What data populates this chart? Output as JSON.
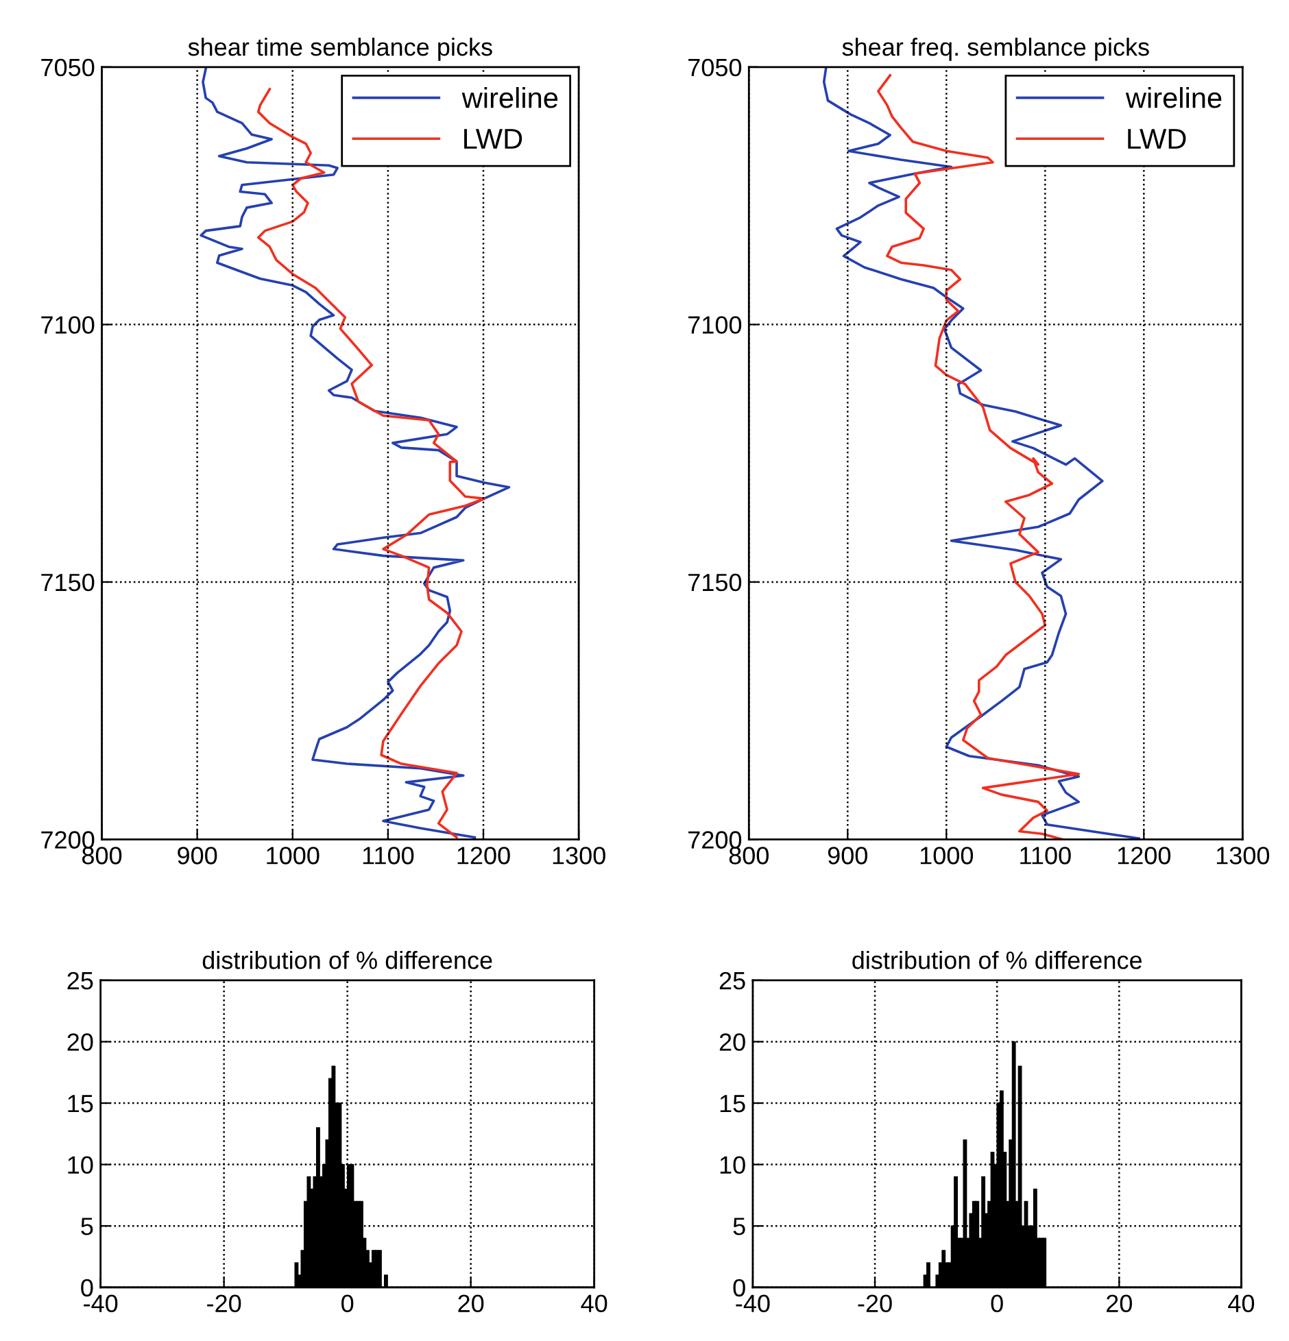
{
  "chart_data": [
    {
      "type": "line",
      "title": "shear time semblance picks",
      "xlim": [
        800,
        1300
      ],
      "xticks": [
        800,
        900,
        1000,
        1100,
        1200,
        1300
      ],
      "ylim": [
        7200,
        7050
      ],
      "yticks": [
        7050,
        7100,
        7150,
        7200
      ],
      "grid": true,
      "legend": "top right",
      "series": [
        {
          "name": "wireline",
          "color": "#2540b0",
          "x": [
            909,
            906,
            909,
            916,
            921,
            947,
            957,
            978,
            952,
            923,
            952,
            1038,
            1047,
            1043,
            947,
            945,
            971,
            978,
            952,
            947,
            945,
            909,
            904,
            933,
            947,
            923,
            921,
            947,
            966,
            1000,
            1014,
            1028,
            1043,
            1028,
            1021,
            1019,
            1033,
            1047,
            1062,
            1057,
            1038,
            1043,
            1062,
            1086,
            1134,
            1172,
            1162,
            1105,
            1114,
            1153,
            1172,
            1172,
            1172,
            1201,
            1227,
            1201,
            1181,
            1172,
            1134,
            1095,
            1047,
            1043,
            1095,
            1179,
            1148,
            1138,
            1143,
            1162,
            1165,
            1162,
            1153,
            1143,
            1134,
            1110,
            1100,
            1105,
            1095,
            1071,
            1057,
            1028,
            1024,
            1021,
            1057,
            1134,
            1179,
            1119,
            1138,
            1134,
            1148,
            1143,
            1095,
            1134,
            1191
          ],
          "values": [
            7050.3,
            7052.9,
            7056.0,
            7056.9,
            7058.7,
            7060.9,
            7063.1,
            7064.0,
            7065.8,
            7067.3,
            7068.5,
            7069.1,
            7069.6,
            7070.9,
            7072.9,
            7074.2,
            7074.7,
            7076.4,
            7077.3,
            7079.1,
            7080.9,
            7081.8,
            7082.7,
            7084.9,
            7085.3,
            7086.6,
            7088.0,
            7089.8,
            7091.1,
            7092.4,
            7093.7,
            7096.0,
            7098.2,
            7099.1,
            7100.4,
            7102.2,
            7104.4,
            7106.6,
            7108.8,
            7111.0,
            7112.8,
            7113.7,
            7114.2,
            7116.8,
            7118.1,
            7119.9,
            7121.3,
            7123.0,
            7123.9,
            7124.4,
            7126.6,
            7127.6,
            7129.4,
            7130.7,
            7131.6,
            7133.8,
            7135.6,
            7137.4,
            7140.5,
            7141.4,
            7142.7,
            7143.6,
            7144.9,
            7145.8,
            7147.2,
            7150.3,
            7151.6,
            7152.9,
            7155.6,
            7157.8,
            7159.6,
            7162.3,
            7164.0,
            7167.6,
            7169.4,
            7171.1,
            7172.9,
            7176.5,
            7178.2,
            7180.5,
            7182.7,
            7184.5,
            7185.3,
            7186.2,
            7187.6,
            7188.9,
            7189.8,
            7191.6,
            7192.5,
            7194.2,
            7196.4,
            7197.8,
            7199.6
          ]
        },
        {
          "name": "LWD",
          "color": "#f03020",
          "x": [
            976,
            966,
            964,
            976,
            1000,
            1014,
            1019,
            1014,
            1033,
            1009,
            1000,
            1004,
            1016,
            1012,
            1000,
            971,
            964,
            976,
            983,
            1000,
            1024,
            1043,
            1055,
            1050,
            1067,
            1083,
            1062,
            1069,
            1095,
            1143,
            1153,
            1148,
            1172,
            1165,
            1165,
            1181,
            1201,
            1181,
            1143,
            1119,
            1095,
            1114,
            1143,
            1141,
            1143,
            1162,
            1177,
            1172,
            1153,
            1134,
            1114,
            1095,
            1093,
            1114,
            1172,
            1157,
            1162,
            1153,
            1172
          ],
          "values": [
            7054.3,
            7057.4,
            7058.7,
            7060.9,
            7063.6,
            7064.9,
            7066.7,
            7068.5,
            7070.5,
            7071.6,
            7072.9,
            7074.2,
            7076.4,
            7078.2,
            7080.0,
            7081.8,
            7083.1,
            7084.9,
            7087.5,
            7090.2,
            7092.9,
            7096.4,
            7098.6,
            7100.8,
            7104.4,
            7107.9,
            7111.5,
            7115.0,
            7117.7,
            7118.6,
            7121.3,
            7123.0,
            7126.6,
            7126.7,
            7130.3,
            7133.4,
            7133.8,
            7135.2,
            7136.9,
            7140.9,
            7143.6,
            7144.9,
            7147.2,
            7150.7,
            7153.4,
            7156.0,
            7159.6,
            7162.3,
            7165.8,
            7170.2,
            7175.6,
            7180.9,
            7183.6,
            7185.3,
            7187.1,
            7190.7,
            7194.2,
            7196.9,
            7199.6
          ]
        }
      ]
    },
    {
      "type": "line",
      "title": "shear freq. semblance picks",
      "xlim": [
        800,
        1300
      ],
      "xticks": [
        800,
        900,
        1000,
        1100,
        1200,
        1300
      ],
      "ylim": [
        7200,
        7050
      ],
      "yticks": [
        7050,
        7100,
        7150,
        7200
      ],
      "grid": true,
      "legend": "top right",
      "series": [
        {
          "name": "wireline",
          "color": "#2540b0",
          "x": [
            878,
            876,
            880,
            903,
            922,
            943,
            931,
            901,
            954,
            1005,
            968,
            922,
            931,
            952,
            931,
            913,
            889,
            894,
            913,
            896,
            917,
            954,
            987,
            1000,
            1017,
            1005,
            998,
            1005,
            1035,
            1012,
            1014,
            1037,
            1070,
            1116,
            1067,
            1088,
            1121,
            1130,
            1158,
            1134,
            1125,
            1093,
            1005,
            1070,
            1116,
            1097,
            1102,
            1116,
            1121,
            1114,
            1107,
            1102,
            1079,
            1074,
            1056,
            1037,
            1005,
            1000,
            1023,
            1093,
            1134,
            1114,
            1121,
            1134,
            1097,
            1102,
            1195
          ],
          "values": [
            7050.3,
            7052.9,
            7056.5,
            7059.2,
            7060.9,
            7063.2,
            7064.9,
            7066.3,
            7068.0,
            7069.4,
            7070.7,
            7072.5,
            7073.4,
            7075.2,
            7076.9,
            7079.2,
            7081.4,
            7082.7,
            7084.0,
            7086.7,
            7088.9,
            7091.2,
            7092.9,
            7094.7,
            7096.9,
            7099.2,
            7100.9,
            7104.5,
            7108.9,
            7111.6,
            7113.4,
            7115.6,
            7116.9,
            7119.6,
            7122.7,
            7124.0,
            7127.2,
            7126.0,
            7130.4,
            7134.0,
            7136.7,
            7139.3,
            7142.0,
            7143.8,
            7145.6,
            7148.2,
            7150.9,
            7152.7,
            7156.2,
            7159.8,
            7164.2,
            7165.6,
            7166.9,
            7170.4,
            7173.1,
            7175.8,
            7180.2,
            7182.0,
            7183.8,
            7185.6,
            7187.8,
            7188.7,
            7190.9,
            7192.7,
            7195.3,
            7197.1,
            7199.8
          ]
        },
        {
          "name": "LWD",
          "color": "#f03020",
          "x": [
            943,
            931,
            940,
            945,
            954,
            966,
            1000,
            1042,
            1047,
            1000,
            968,
            973,
            959,
            959,
            977,
            973,
            945,
            940,
            954,
            977,
            1005,
            1014,
            1000,
            1000,
            1012,
            1000,
            993,
            989,
            1000,
            1019,
            1037,
            1044,
            1065,
            1093,
            1088,
            1093,
            1107,
            1084,
            1060,
            1079,
            1074,
            1093,
            1065,
            1070,
            1084,
            1097,
            1100,
            1084,
            1060,
            1051,
            1033,
            1033,
            1028,
            1035,
            1021,
            1017,
            1042,
            1084,
            1134,
            1037,
            1056,
            1093,
            1102,
            1088,
            1074,
            1097,
            1118
          ],
          "values": [
            7051.6,
            7054.7,
            7057.4,
            7059.6,
            7061.8,
            7064.5,
            7066.3,
            7067.6,
            7068.5,
            7069.8,
            7070.7,
            7072.5,
            7075.6,
            7078.3,
            7081.4,
            7083.2,
            7084.9,
            7086.7,
            7088.0,
            7088.5,
            7089.4,
            7091.2,
            7093.4,
            7095.2,
            7097.4,
            7099.2,
            7102.7,
            7108.0,
            7109.8,
            7111.6,
            7116.0,
            7120.5,
            7124.0,
            7127.2,
            7126.0,
            7128.7,
            7130.9,
            7133.1,
            7134.4,
            7137.6,
            7140.7,
            7144.2,
            7146.4,
            7150.0,
            7152.7,
            7156.2,
            7158.4,
            7160.7,
            7164.2,
            7166.4,
            7169.1,
            7171.3,
            7173.1,
            7175.8,
            7178.4,
            7180.7,
            7184.2,
            7185.6,
            7187.3,
            7190.0,
            7191.3,
            7192.7,
            7194.4,
            7195.8,
            7198.4,
            7198.9,
            7200.0
          ]
        }
      ]
    },
    {
      "type": "histogram",
      "title": "distribution of % difference",
      "color": "#000000",
      "xlim": [
        -40,
        40
      ],
      "xticks": [
        -40,
        -20,
        0,
        20,
        40
      ],
      "ylim": [
        0,
        25
      ],
      "yticks": [
        0,
        5,
        10,
        15,
        20,
        25
      ],
      "grid": true,
      "bins": [
        -8.5,
        -8,
        -7.5,
        -7,
        -6.5,
        -6,
        -5.5,
        -5,
        -4.5,
        -4,
        -3.5,
        -3,
        -2.5,
        -2,
        -1.5,
        -1,
        -0.5,
        0,
        0.5,
        1,
        1.5,
        2,
        2.5,
        3,
        3.5,
        4,
        4.5,
        5,
        5.5,
        6,
        6.5
      ],
      "values": [
        2,
        1,
        3,
        7,
        9,
        8,
        9,
        13,
        9,
        10,
        12,
        17,
        18,
        15,
        15,
        10,
        8,
        10,
        10,
        7,
        7,
        7,
        4,
        3,
        2,
        3,
        3,
        3,
        0,
        1
      ]
    },
    {
      "type": "histogram",
      "title": "distribution of % difference",
      "color": "#000000",
      "xlim": [
        -40,
        40
      ],
      "xticks": [
        -40,
        -20,
        0,
        20,
        40
      ],
      "ylim": [
        0,
        25
      ],
      "yticks": [
        0,
        5,
        10,
        15,
        20,
        25
      ],
      "grid": true,
      "bins": [
        -12,
        -11.5,
        -11,
        -10.5,
        -10,
        -9.5,
        -9,
        -8.5,
        -8,
        -7.5,
        -7,
        -6.5,
        -6,
        -5.5,
        -5,
        -4.5,
        -4,
        -3.5,
        -3,
        -2.5,
        -2,
        -1.5,
        -1,
        -0.5,
        0,
        0.5,
        1,
        1.5,
        2,
        2.5,
        3,
        3.5,
        4,
        4.5,
        5,
        5.5,
        6,
        6.5,
        7,
        7.5,
        8
      ],
      "values": [
        1,
        2,
        0,
        0,
        1,
        2,
        3,
        2,
        2,
        5,
        9,
        4,
        4,
        12,
        4,
        6,
        7,
        7,
        4,
        9,
        6,
        7,
        11,
        10,
        15,
        16,
        11,
        7,
        12,
        20,
        7,
        18,
        5,
        7,
        5,
        5,
        8,
        4,
        4,
        4
      ]
    }
  ]
}
